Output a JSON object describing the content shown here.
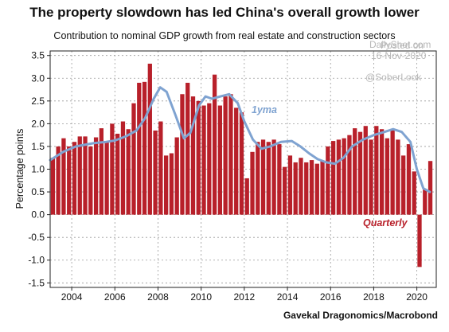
{
  "chart_data": {
    "type": "bar",
    "title": "The property slowdown has led China's overall growth lower",
    "subtitle": "Contribution to nominal GDP growth from real estate and construction sectors",
    "ylabel": "Percentage points",
    "ylim": [
      -1.6,
      3.6
    ],
    "yticks": [
      3.5,
      3.0,
      2.5,
      2.0,
      1.5,
      1.0,
      0.5,
      0.0,
      -0.5,
      -1.0,
      -1.5
    ],
    "ytick_labels": [
      "3.5",
      "3.0",
      "2.5",
      "2.0",
      "1.5",
      "1.0",
      "0.5",
      "0.0",
      "-0.5",
      "-1.0",
      "-1.5"
    ],
    "xlim": [
      2003.0,
      2020.9
    ],
    "xticks": [
      2004,
      2006,
      2008,
      2010,
      2012,
      2014,
      2016,
      2018,
      2020
    ],
    "xtick_labels": [
      "2004",
      "2006",
      "2008",
      "2010",
      "2012",
      "2014",
      "2016",
      "2018",
      "2020"
    ],
    "grid": true,
    "colors": {
      "bars": "#b8202a",
      "line": "#7fa3d1"
    },
    "series": [
      {
        "name": "Quarterly",
        "type": "bar",
        "start_year": 2003.0,
        "step": 0.25,
        "values": [
          1.25,
          1.5,
          1.68,
          1.5,
          1.6,
          1.72,
          1.72,
          1.5,
          1.7,
          1.9,
          1.62,
          2.0,
          1.78,
          2.05,
          1.88,
          2.45,
          2.9,
          2.92,
          3.32,
          1.85,
          2.05,
          1.3,
          1.35,
          1.7,
          2.65,
          2.9,
          2.6,
          2.5,
          2.4,
          2.45,
          3.08,
          2.4,
          2.6,
          2.65,
          2.35,
          2.25,
          0.8,
          1.38,
          1.6,
          1.65,
          1.6,
          1.65,
          1.55,
          1.05,
          1.3,
          1.15,
          1.25,
          1.15,
          1.2,
          1.12,
          1.18,
          1.5,
          1.62,
          1.65,
          1.68,
          1.75,
          1.9,
          1.82,
          1.95,
          1.65,
          1.95,
          1.88,
          1.68,
          1.88,
          1.65,
          1.3,
          1.55,
          0.95,
          -1.15,
          0.55,
          1.18
        ]
      },
      {
        "name": "1yma",
        "type": "line",
        "x": [
          2003.0,
          2003.6,
          2004.2,
          2005.0,
          2005.6,
          2006.0,
          2006.5,
          2007.0,
          2007.4,
          2007.8,
          2008.1,
          2008.4,
          2008.8,
          2009.2,
          2009.5,
          2009.9,
          2010.2,
          2010.5,
          2010.9,
          2011.3,
          2011.7,
          2012.0,
          2012.4,
          2012.8,
          2013.2,
          2013.7,
          2014.2,
          2014.6,
          2015.0,
          2015.4,
          2015.8,
          2016.2,
          2016.6,
          2017.0,
          2017.5,
          2018.0,
          2018.5,
          2018.9,
          2019.3,
          2019.7,
          2020.0,
          2020.3,
          2020.6
        ],
        "y": [
          1.2,
          1.38,
          1.5,
          1.57,
          1.6,
          1.63,
          1.72,
          1.85,
          2.12,
          2.55,
          2.8,
          2.7,
          2.2,
          1.68,
          1.8,
          2.4,
          2.6,
          2.55,
          2.6,
          2.65,
          2.45,
          2.05,
          1.65,
          1.45,
          1.5,
          1.6,
          1.62,
          1.5,
          1.35,
          1.22,
          1.15,
          1.12,
          1.25,
          1.5,
          1.65,
          1.75,
          1.82,
          1.88,
          1.82,
          1.6,
          1.0,
          0.58,
          0.5
        ]
      }
    ],
    "annotations": {
      "line_label": "1yma",
      "bar_label": "Quarterly"
    },
    "source": "Gavekal Dragonomics/Macrobond",
    "watermark": {
      "posted": "Posted on",
      "site": "DailyShot.com",
      "date": "16-Nov-2020",
      "handle": "@SoberLook"
    }
  }
}
